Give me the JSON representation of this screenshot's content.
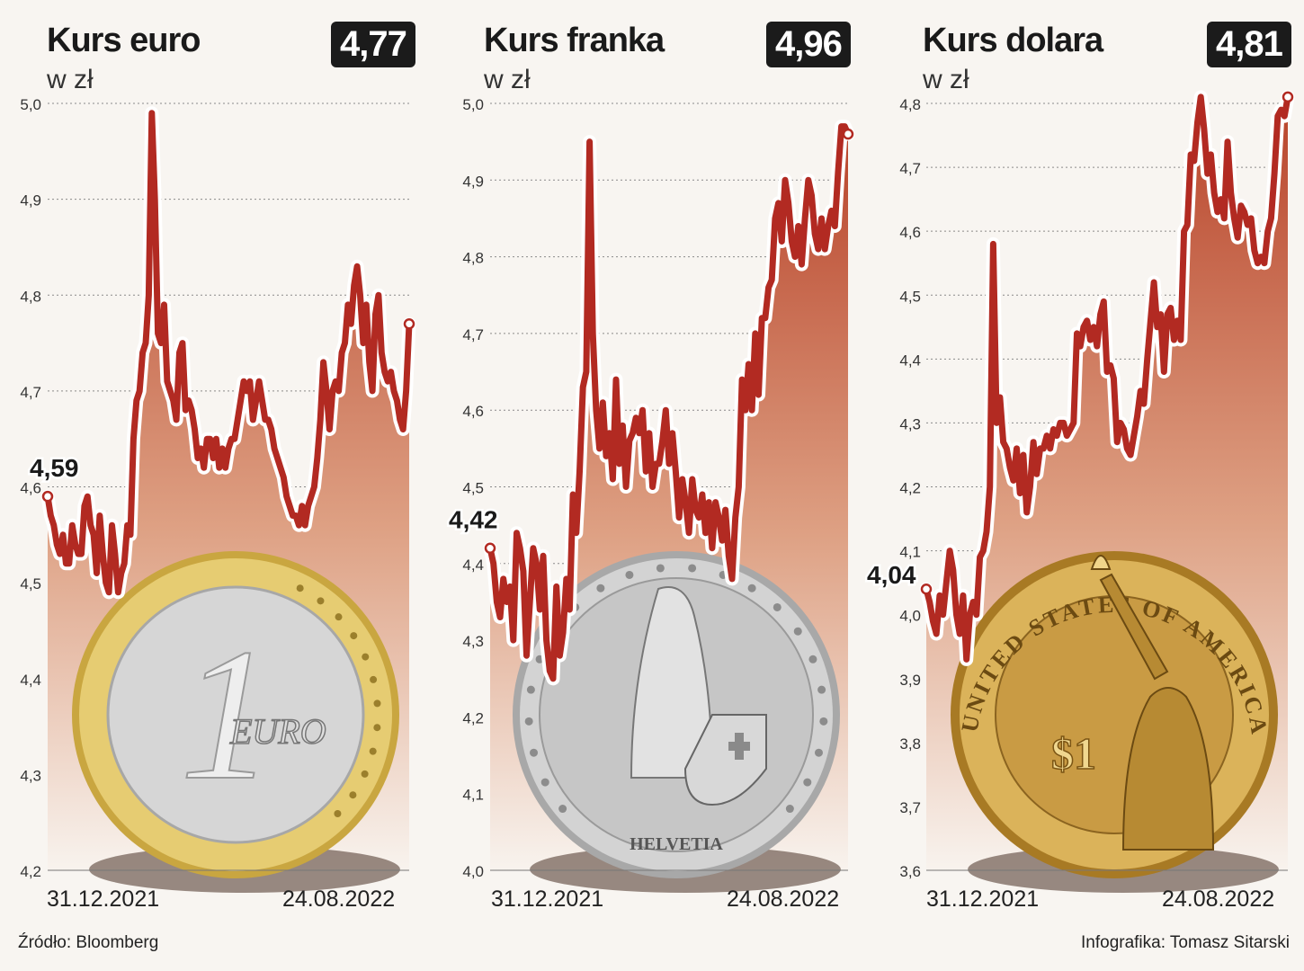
{
  "source": "Źródło: Bloomberg",
  "credit": "Infografika: Tomasz Sitarski",
  "chart_data": [
    {
      "type": "line",
      "title": "Kurs euro",
      "subtitle": "w zł",
      "current_value": "4,77",
      "start_value": "4,59",
      "x_start_label": "31.12.2021",
      "x_end_label": "24.08.2022",
      "ylim": [
        4.2,
        5.0
      ],
      "yticks": [
        4.2,
        4.3,
        4.4,
        4.5,
        4.6,
        4.7,
        4.8,
        4.9,
        5.0
      ],
      "ytick_labels": [
        "4,2",
        "4,3",
        "4,4",
        "4,5",
        "4,6",
        "4,7",
        "4,8",
        "4,9",
        "5,0"
      ],
      "grid": true,
      "coin": "euro",
      "coin_text": "EURO",
      "coin_numeral": "1",
      "values": [
        4.59,
        4.57,
        4.56,
        4.54,
        4.53,
        4.55,
        4.52,
        4.52,
        4.56,
        4.54,
        4.53,
        4.53,
        4.58,
        4.59,
        4.56,
        4.55,
        4.51,
        4.57,
        4.53,
        4.5,
        4.49,
        4.56,
        4.53,
        4.49,
        4.51,
        4.52,
        4.56,
        4.55,
        4.65,
        4.69,
        4.7,
        4.74,
        4.75,
        4.8,
        4.99,
        4.9,
        4.76,
        4.75,
        4.79,
        4.71,
        4.7,
        4.69,
        4.67,
        4.74,
        4.75,
        4.68,
        4.69,
        4.68,
        4.66,
        4.63,
        4.64,
        4.62,
        4.65,
        4.65,
        4.63,
        4.65,
        4.62,
        4.64,
        4.62,
        4.64,
        4.65,
        4.65,
        4.67,
        4.69,
        4.71,
        4.7,
        4.71,
        4.67,
        4.69,
        4.71,
        4.69,
        4.67,
        4.67,
        4.66,
        4.64,
        4.63,
        4.62,
        4.61,
        4.59,
        4.58,
        4.57,
        4.57,
        4.56,
        4.58,
        4.56,
        4.58,
        4.59,
        4.6,
        4.63,
        4.67,
        4.73,
        4.7,
        4.66,
        4.7,
        4.71,
        4.7,
        4.74,
        4.75,
        4.79,
        4.77,
        4.81,
        4.83,
        4.8,
        4.75,
        4.79,
        4.73,
        4.7,
        4.78,
        4.8,
        4.74,
        4.72,
        4.71,
        4.72,
        4.7,
        4.69,
        4.67,
        4.66,
        4.7,
        4.77
      ]
    },
    {
      "type": "line",
      "title": "Kurs franka",
      "subtitle": "w zł",
      "current_value": "4,96",
      "start_value": "4,42",
      "x_start_label": "31.12.2021",
      "x_end_label": "24.08.2022",
      "ylim": [
        4.0,
        5.0
      ],
      "yticks": [
        4.0,
        4.1,
        4.2,
        4.3,
        4.4,
        4.5,
        4.6,
        4.7,
        4.8,
        4.9,
        5.0
      ],
      "ytick_labels": [
        "4,0",
        "4,1",
        "4,2",
        "4,3",
        "4,4",
        "4,5",
        "4,6",
        "4,7",
        "4,8",
        "4,9",
        "5,0"
      ],
      "grid": true,
      "coin": "franc",
      "coin_text": "HELVETIA",
      "values": [
        4.42,
        4.4,
        4.35,
        4.33,
        4.38,
        4.35,
        4.37,
        4.3,
        4.44,
        4.42,
        4.39,
        4.28,
        4.35,
        4.42,
        4.4,
        4.34,
        4.41,
        4.3,
        4.26,
        4.25,
        4.37,
        4.28,
        4.31,
        4.38,
        4.34,
        4.49,
        4.44,
        4.52,
        4.63,
        4.65,
        4.95,
        4.7,
        4.6,
        4.55,
        4.61,
        4.54,
        4.57,
        4.51,
        4.64,
        4.53,
        4.58,
        4.5,
        4.56,
        4.57,
        4.59,
        4.57,
        4.6,
        4.52,
        4.57,
        4.5,
        4.53,
        4.53,
        4.56,
        4.6,
        4.53,
        4.57,
        4.52,
        4.46,
        4.51,
        4.48,
        4.44,
        4.51,
        4.47,
        4.46,
        4.49,
        4.44,
        4.48,
        4.42,
        4.48,
        4.46,
        4.43,
        4.47,
        4.41,
        4.38,
        4.46,
        4.5,
        4.64,
        4.6,
        4.66,
        4.6,
        4.7,
        4.62,
        4.72,
        4.72,
        4.76,
        4.77,
        4.85,
        4.87,
        4.82,
        4.9,
        4.87,
        4.82,
        4.8,
        4.84,
        4.79,
        4.85,
        4.9,
        4.88,
        4.83,
        4.81,
        4.85,
        4.81,
        4.84,
        4.86,
        4.84,
        4.91,
        4.97,
        4.97,
        4.96
      ]
    },
    {
      "type": "line",
      "title": "Kurs dolara",
      "subtitle": "w zł",
      "current_value": "4,81",
      "start_value": "4,04",
      "x_start_label": "31.12.2021",
      "x_end_label": "24.08.2022",
      "ylim": [
        3.6,
        4.8
      ],
      "yticks": [
        3.6,
        3.7,
        3.8,
        3.9,
        4.0,
        4.1,
        4.2,
        4.3,
        4.4,
        4.5,
        4.6,
        4.7,
        4.8
      ],
      "ytick_labels": [
        "3,6",
        "3,7",
        "3,8",
        "3,9",
        "4,0",
        "4,1",
        "4,2",
        "4,3",
        "4,4",
        "4,5",
        "4,6",
        "4,7",
        "4,8"
      ],
      "grid": true,
      "coin": "dollar",
      "coin_text": "UNITED STATES OF AMERICA",
      "coin_value_text": "$1",
      "values": [
        4.04,
        4.02,
        3.99,
        3.97,
        4.03,
        4.0,
        4.05,
        4.1,
        4.07,
        4.0,
        3.97,
        4.03,
        3.93,
        4.0,
        4.02,
        4.0,
        4.09,
        4.1,
        4.13,
        4.2,
        4.58,
        4.3,
        4.34,
        4.27,
        4.26,
        4.23,
        4.21,
        4.26,
        4.19,
        4.25,
        4.16,
        4.2,
        4.27,
        4.22,
        4.26,
        4.26,
        4.28,
        4.26,
        4.29,
        4.28,
        4.3,
        4.3,
        4.28,
        4.29,
        4.3,
        4.44,
        4.42,
        4.45,
        4.46,
        4.43,
        4.45,
        4.42,
        4.47,
        4.49,
        4.38,
        4.39,
        4.37,
        4.27,
        4.3,
        4.29,
        4.26,
        4.25,
        4.28,
        4.31,
        4.35,
        4.33,
        4.4,
        4.46,
        4.52,
        4.45,
        4.47,
        4.38,
        4.47,
        4.48,
        4.43,
        4.46,
        4.43,
        4.6,
        4.61,
        4.72,
        4.71,
        4.77,
        4.81,
        4.76,
        4.69,
        4.72,
        4.66,
        4.63,
        4.65,
        4.62,
        4.74,
        4.66,
        4.62,
        4.59,
        4.64,
        4.63,
        4.61,
        4.62,
        4.57,
        4.55,
        4.56,
        4.55,
        4.6,
        4.62,
        4.69,
        4.78,
        4.79,
        4.78,
        4.81
      ]
    }
  ]
}
